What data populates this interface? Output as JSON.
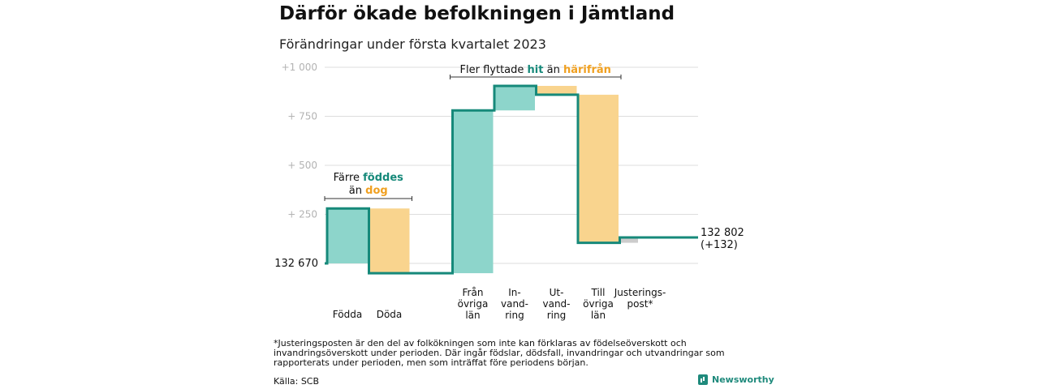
{
  "title": "Därför ökade befolkningen i Jämtland",
  "subtitle": "Förändringar under första kvartalet 2023",
  "footnote": "*Justeringsposten är den del av folkökningen som inte kan förklaras av födelseöverskott och invandringsöverskott under perioden. Där ingår födslar, dödsfall, invandringar och utvandringar som rapporterats under perioden, men som inträffat före periodens början.",
  "source": "Källa: SCB",
  "logo": "Newsworthy",
  "colors": {
    "positive": "#8dd5cb",
    "negative": "#f9d48e",
    "adjustment": "#cccccc",
    "line": "#16897a",
    "teal_text": "#16897a",
    "orange_text": "#f0a020",
    "grid": "#dddddd",
    "tick": "#b3b3b3"
  },
  "chart_data": {
    "type": "waterfall",
    "yticks": [
      "+1 000",
      "+ 750",
      "+ 500",
      "+ 250"
    ],
    "ytick_values": [
      1000,
      750,
      500,
      250
    ],
    "ylim": [
      -80,
      1070
    ],
    "start_label": "132 670",
    "end_label_line1": "132 802",
    "end_label_line2": "(+132)",
    "steps": [
      {
        "label": "Födda",
        "value": 280,
        "kind": "positive"
      },
      {
        "label": "Döda",
        "value": -330,
        "kind": "negative"
      },
      {
        "label": "Från\növriga\nlän",
        "value": 830,
        "kind": "positive"
      },
      {
        "label": "In-\nvand-\nring",
        "value": 125,
        "kind": "positive"
      },
      {
        "label": "Ut-\nvand-\nring",
        "value": -45,
        "kind": "negative"
      },
      {
        "label": "Till\növriga\nlän",
        "value": -755,
        "kind": "negative"
      },
      {
        "label": "Justerings-\npost*",
        "value": 27,
        "kind": "adjustment"
      }
    ],
    "gaps_after": [
      1
    ],
    "annotations": [
      {
        "parts": [
          {
            "text": "Färre ",
            "style": "plain"
          },
          {
            "text": "föddes",
            "style": "teal"
          }
        ],
        "line2": [
          {
            "text": "än ",
            "style": "plain"
          },
          {
            "text": "dog",
            "style": "orange"
          }
        ],
        "span": [
          0,
          1
        ]
      },
      {
        "parts": [
          {
            "text": "Fler flyttade ",
            "style": "plain"
          },
          {
            "text": "hit",
            "style": "teal"
          },
          {
            "text": " än ",
            "style": "plain"
          },
          {
            "text": "härifrån",
            "style": "orange"
          }
        ],
        "span": [
          2,
          5
        ]
      }
    ]
  }
}
